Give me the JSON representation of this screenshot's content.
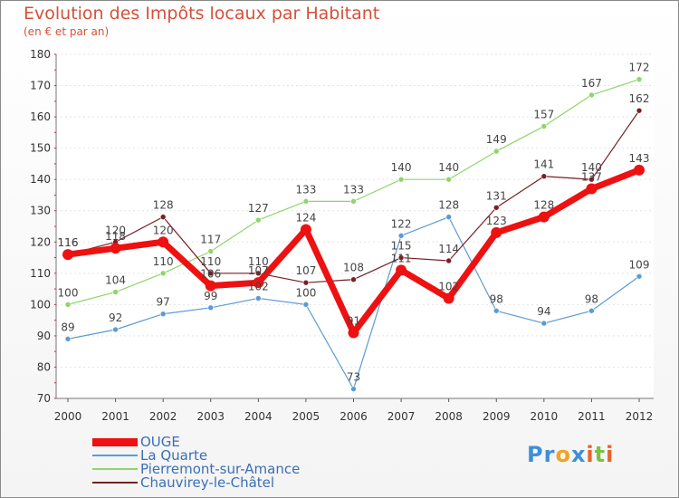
{
  "title": "Evolution des Impôts locaux par Habitant",
  "subtitle": "(en € et par an)",
  "logo": {
    "text": "Proxiti",
    "letters": [
      "P",
      "r",
      "o",
      "x",
      "i",
      "t",
      "i"
    ],
    "colors": [
      "#3e8fd8",
      "#3e8fd8",
      "#f2a324",
      "#3e8fd8",
      "#e8632b",
      "#7cc242",
      "#e8632b"
    ]
  },
  "chart_data": {
    "type": "line",
    "title": "Evolution des Impôts locaux par Habitant",
    "ylabel": "(en € et par an)",
    "xlabel": "",
    "ylim": [
      70,
      180
    ],
    "yticks": [
      "70",
      "80",
      "90",
      "100",
      "110",
      "120",
      "130",
      "140",
      "150",
      "160",
      "170",
      "180"
    ],
    "ytick_values": [
      70,
      80,
      90,
      100,
      110,
      120,
      130,
      140,
      150,
      160,
      170,
      180
    ],
    "categories": [
      "2000",
      "2001",
      "2002",
      "2003",
      "2004",
      "2005",
      "2006",
      "2007",
      "2008",
      "2009",
      "2010",
      "2011",
      "2012"
    ],
    "series": [
      {
        "name": "OUGE",
        "color": "#ee1111",
        "width": 7,
        "marker": 6,
        "labels": [
          "116",
          "118",
          "120",
          "106",
          "107",
          "124",
          "91",
          "111",
          "102",
          "123",
          "128",
          "137",
          "143"
        ],
        "values": [
          116,
          118,
          120,
          106,
          107,
          124,
          91,
          111,
          102,
          123,
          128,
          137,
          143
        ]
      },
      {
        "name": "La Quarte",
        "color": "#5b9bd5",
        "width": 1.2,
        "marker": 3,
        "labels": [
          "89",
          "92",
          "97",
          "99",
          "102",
          "100",
          "73",
          "122",
          "128",
          "98",
          "94",
          "98",
          "109"
        ],
        "values": [
          89,
          92,
          97,
          99,
          102,
          100,
          73,
          122,
          128,
          98,
          94,
          98,
          109
        ]
      },
      {
        "name": "Pierremont-sur-Amance",
        "color": "#8fd56a",
        "width": 1.2,
        "marker": 3,
        "labels": [
          "100",
          "104",
          "110",
          "117",
          "127",
          "133",
          "133",
          "140",
          "140",
          "149",
          "157",
          "167",
          "172"
        ],
        "values": [
          100,
          104,
          110,
          117,
          127,
          133,
          133,
          140,
          140,
          149,
          157,
          167,
          172
        ]
      },
      {
        "name": "Chauvirey-le-Châtel",
        "color": "#7a1e22",
        "width": 1.2,
        "marker": 3,
        "labels": [
          "116",
          "120",
          "128",
          "110",
          "110",
          "107",
          "108",
          "115",
          "114",
          "131",
          "141",
          "140",
          "162"
        ],
        "values": [
          116,
          120,
          128,
          110,
          110,
          107,
          108,
          115,
          114,
          131,
          141,
          140,
          162
        ]
      }
    ]
  }
}
